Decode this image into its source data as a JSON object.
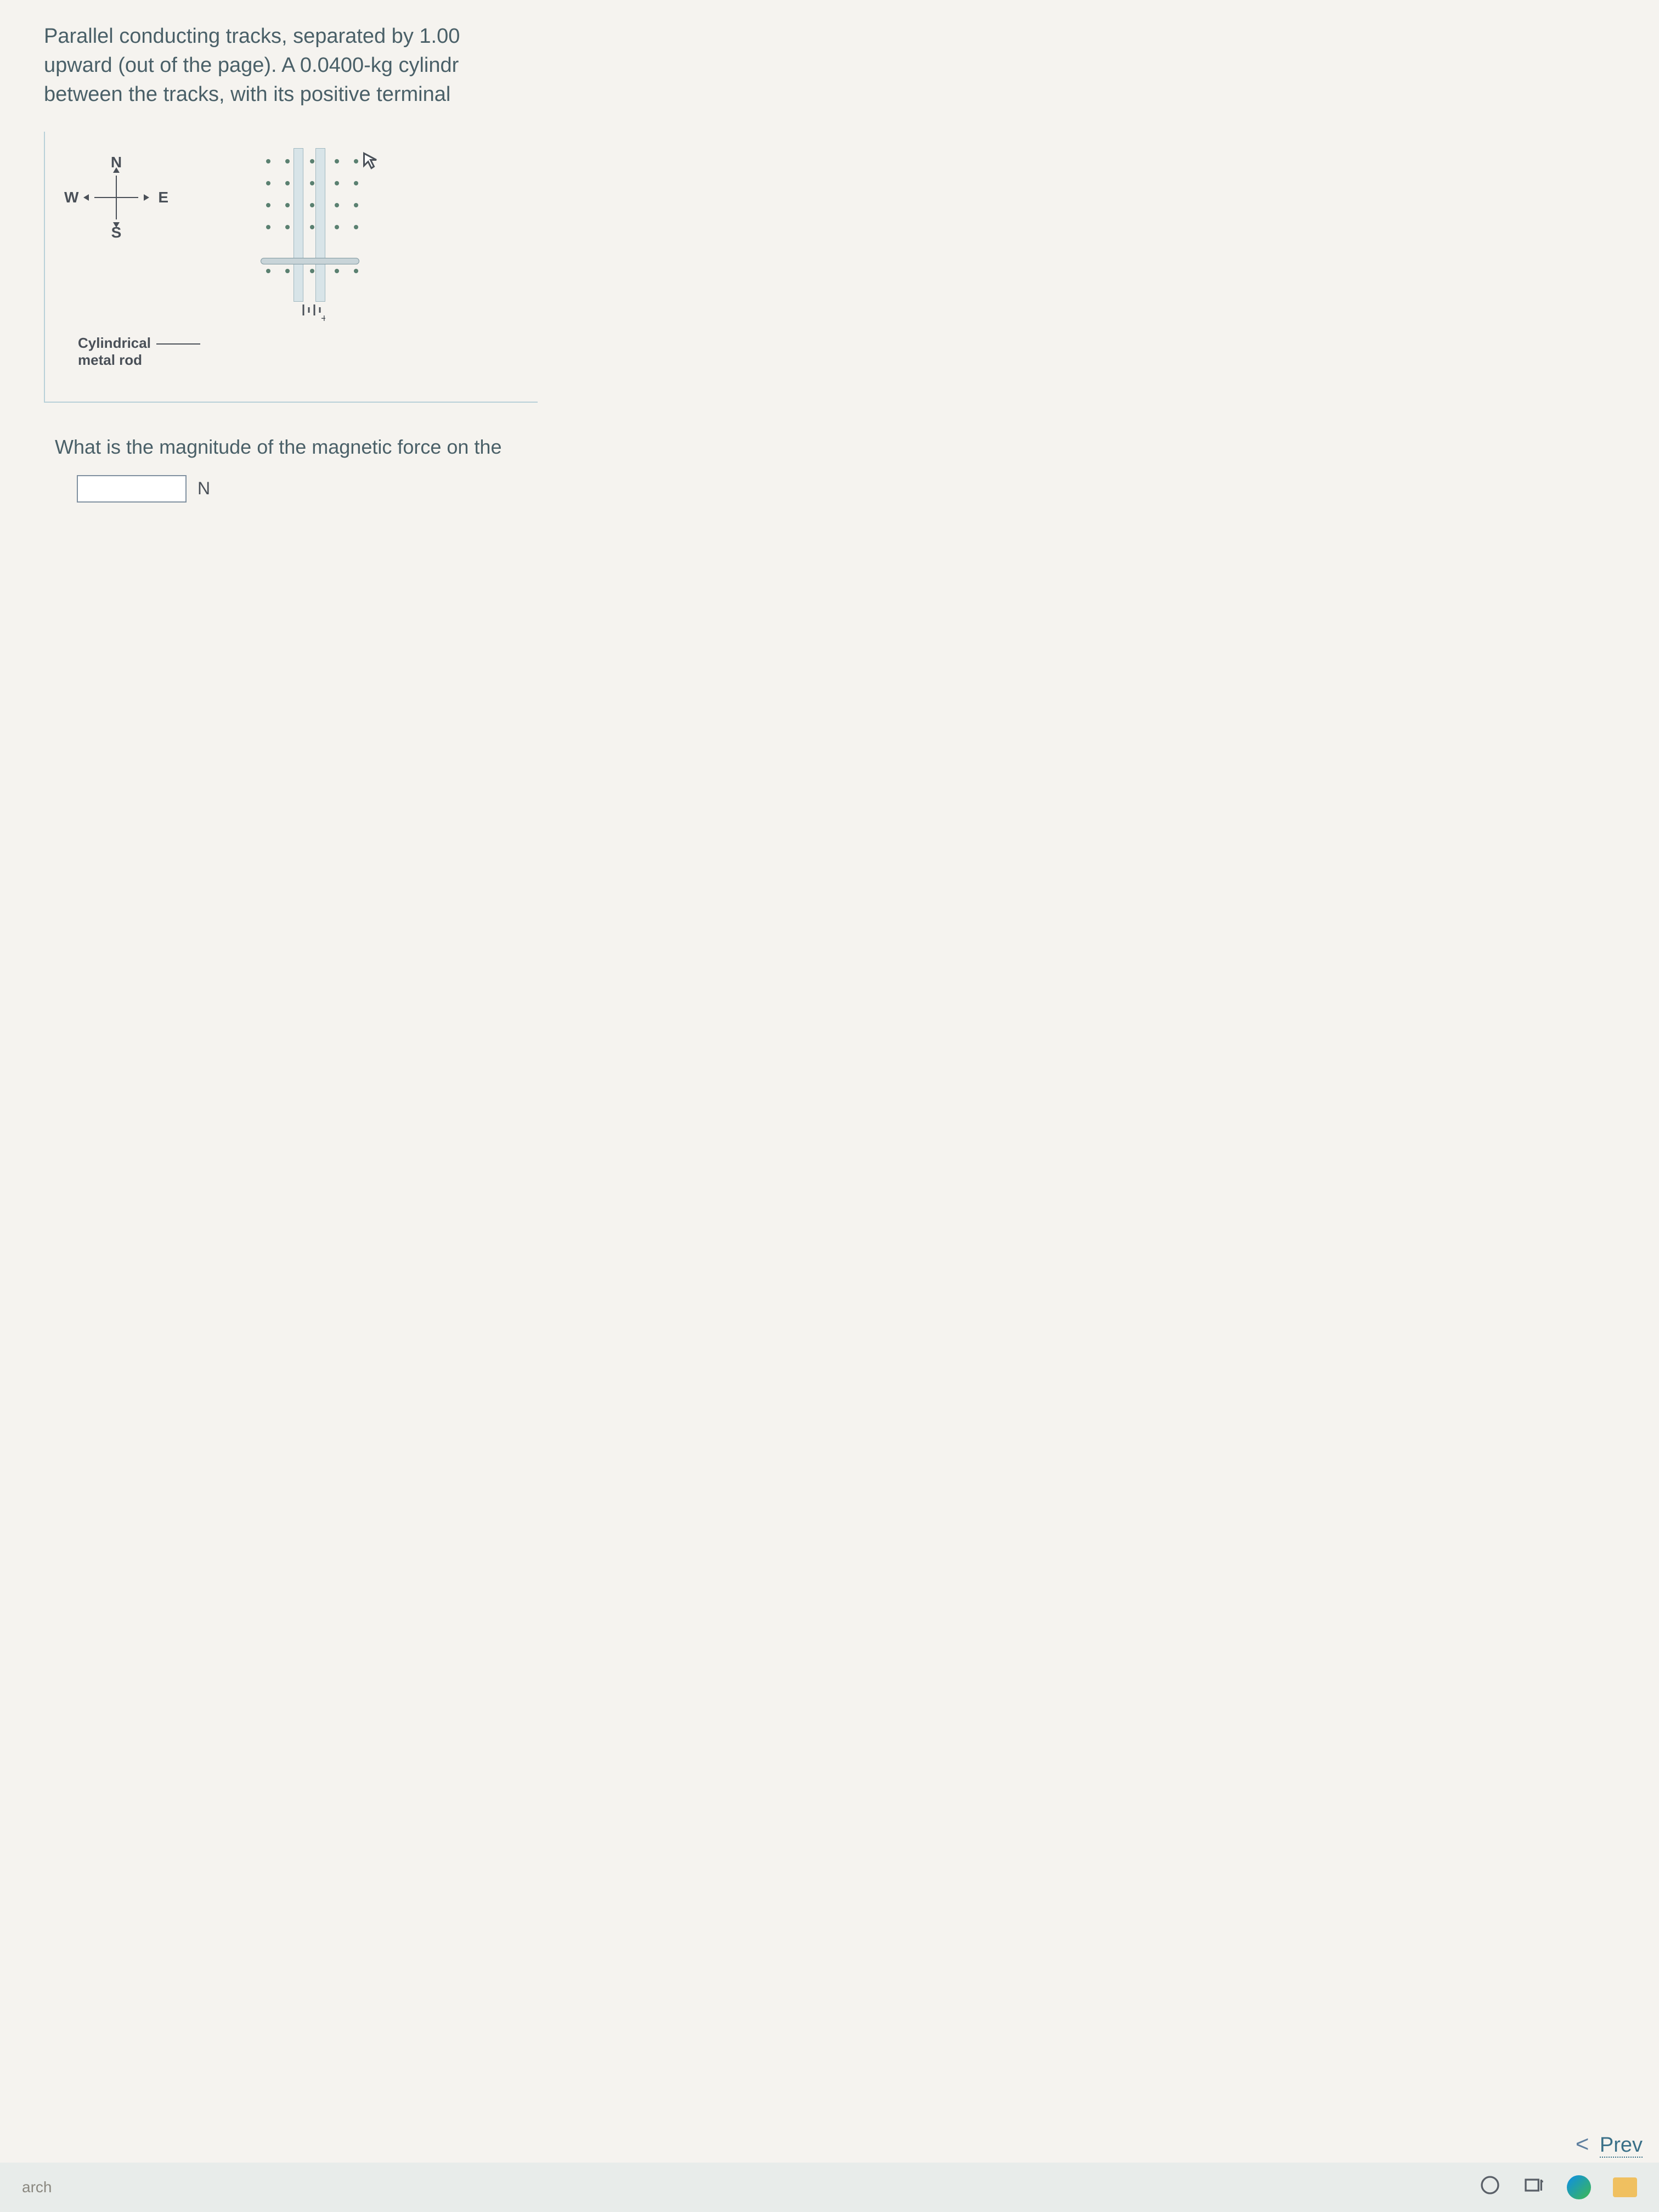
{
  "problem": {
    "line1": "Parallel conducting tracks, separated by 1.00",
    "line2": "upward (out of the page). A 0.0400-kg cylindr",
    "line3": "between the tracks, with its positive terminal"
  },
  "compass": {
    "north": "N",
    "south": "S",
    "east": "E",
    "west": "W"
  },
  "diagram": {
    "rod_label_1": "Cylindrical",
    "rod_label_2": "metal rod",
    "track_color": "#d8e4e8",
    "dot_color": "#5a8070",
    "dot_rows": 5,
    "dot_cols": 5
  },
  "question": "What is the magnitude of the magnetic force on the",
  "answer": {
    "value": "",
    "unit": "N"
  },
  "navigation": {
    "prev": "Prev"
  },
  "taskbar": {
    "search": "arch"
  }
}
